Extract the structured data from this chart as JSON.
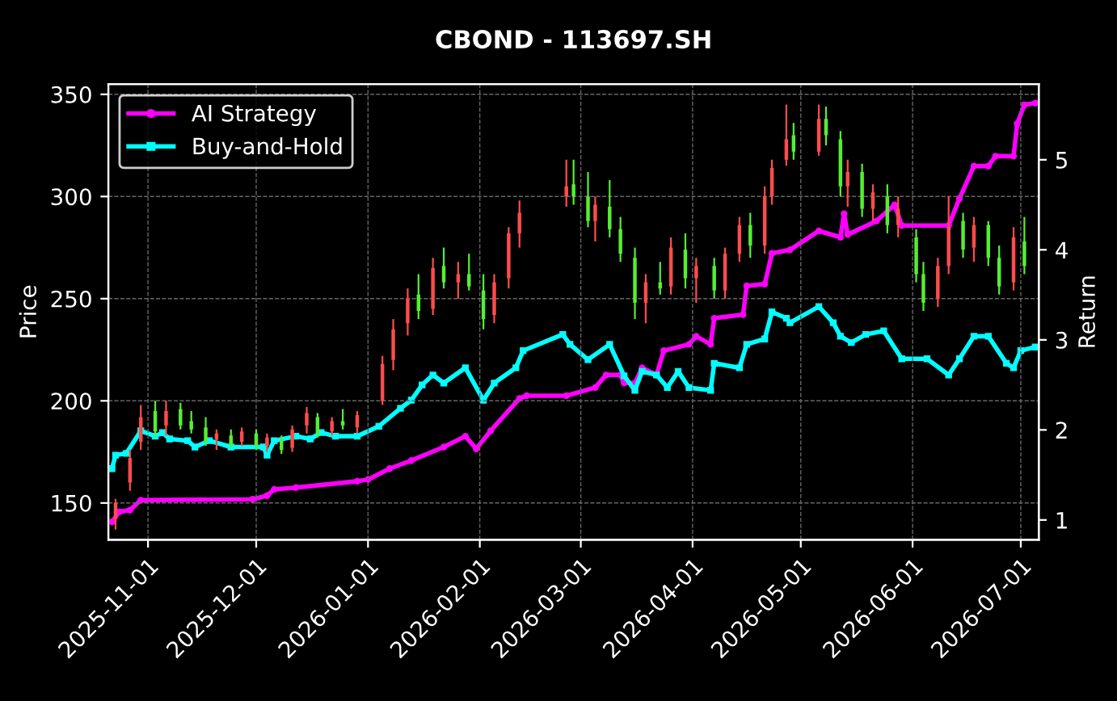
{
  "chart_data": {
    "type": "candlestick",
    "title": "CBOND - 113697.SH",
    "ylabel": "Price",
    "y2label": "Return",
    "x": [
      "2025-10-23",
      "2025-10-27",
      "2025-10-30",
      "2025-11-03",
      "2025-11-06",
      "2025-11-10",
      "2025-11-13",
      "2025-11-17",
      "2025-11-20",
      "2025-11-24",
      "2025-11-27",
      "2025-12-01",
      "2025-12-04",
      "2025-12-08",
      "2025-12-11",
      "2025-12-15",
      "2025-12-18",
      "2025-12-22",
      "2025-12-25",
      "2025-12-29",
      "2026-01-05",
      "2026-01-08",
      "2026-01-12",
      "2026-01-15",
      "2026-01-19",
      "2026-01-22",
      "2026-01-26",
      "2026-01-29",
      "2026-02-02",
      "2026-02-05",
      "2026-02-09",
      "2026-02-12",
      "2026-02-25",
      "2026-02-27",
      "2026-03-03",
      "2026-03-05",
      "2026-03-09",
      "2026-03-12",
      "2026-03-16",
      "2026-03-19",
      "2026-03-23",
      "2026-03-26",
      "2026-03-30",
      "2026-04-02",
      "2026-04-07",
      "2026-04-10",
      "2026-04-14",
      "2026-04-17",
      "2026-04-21",
      "2026-04-23",
      "2026-04-27",
      "2026-04-29",
      "2026-05-06",
      "2026-05-08",
      "2026-05-12",
      "2026-05-14",
      "2026-05-18",
      "2026-05-21",
      "2026-05-25",
      "2026-05-28",
      "2026-06-02",
      "2026-06-04",
      "2026-06-08",
      "2026-06-11",
      "2026-06-15",
      "2026-06-18",
      "2026-06-22",
      "2026-06-25",
      "2026-06-29",
      "2026-07-02"
    ],
    "ohlc": [
      [
        142,
        152,
        137,
        150
      ],
      [
        160,
        176,
        156,
        172
      ],
      [
        180,
        198,
        176,
        192
      ],
      [
        195,
        200,
        182,
        185
      ],
      [
        188,
        200,
        183,
        195
      ],
      [
        196,
        199,
        186,
        188
      ],
      [
        190,
        195,
        184,
        186
      ],
      [
        187,
        192,
        178,
        180
      ],
      [
        181,
        186,
        176,
        184
      ],
      [
        183,
        186,
        177,
        178
      ],
      [
        180,
        187,
        178,
        185
      ],
      [
        184,
        186,
        176,
        178
      ],
      [
        178,
        184,
        175,
        182
      ],
      [
        181,
        183,
        174,
        176
      ],
      [
        177,
        188,
        175,
        186
      ],
      [
        188,
        197,
        184,
        194
      ],
      [
        192,
        194,
        182,
        184
      ],
      [
        185,
        192,
        183,
        190
      ],
      [
        190,
        196,
        186,
        188
      ],
      [
        187,
        195,
        184,
        193
      ],
      [
        200,
        222,
        198,
        218
      ],
      [
        220,
        240,
        215,
        235
      ],
      [
        238,
        255,
        232,
        250
      ],
      [
        252,
        262,
        240,
        244
      ],
      [
        245,
        270,
        242,
        265
      ],
      [
        266,
        275,
        255,
        258
      ],
      [
        258,
        268,
        250,
        262
      ],
      [
        262,
        272,
        254,
        256
      ],
      [
        254,
        262,
        235,
        240
      ],
      [
        242,
        262,
        238,
        258
      ],
      [
        260,
        285,
        255,
        282
      ],
      [
        282,
        298,
        275,
        292
      ],
      [
        300,
        318,
        295,
        305
      ],
      [
        306,
        318,
        296,
        300
      ],
      [
        300,
        312,
        285,
        288
      ],
      [
        288,
        300,
        278,
        296
      ],
      [
        295,
        308,
        280,
        284
      ],
      [
        284,
        290,
        268,
        272
      ],
      [
        270,
        275,
        240,
        248
      ],
      [
        248,
        262,
        238,
        258
      ],
      [
        258,
        268,
        252,
        255
      ],
      [
        256,
        280,
        252,
        275
      ],
      [
        274,
        282,
        255,
        260
      ],
      [
        260,
        270,
        248,
        266
      ],
      [
        266,
        270,
        250,
        254
      ],
      [
        254,
        275,
        250,
        272
      ],
      [
        272,
        290,
        268,
        286
      ],
      [
        286,
        292,
        270,
        276
      ],
      [
        276,
        305,
        272,
        300
      ],
      [
        300,
        318,
        296,
        314
      ],
      [
        318,
        345,
        315,
        328
      ],
      [
        330,
        336,
        318,
        322
      ],
      [
        322,
        345,
        320,
        338
      ],
      [
        338,
        344,
        325,
        330
      ],
      [
        328,
        332,
        300,
        305
      ],
      [
        305,
        318,
        295,
        312
      ],
      [
        312,
        316,
        290,
        294
      ],
      [
        294,
        306,
        288,
        302
      ],
      [
        300,
        306,
        282,
        286
      ],
      [
        286,
        300,
        280,
        294
      ],
      [
        280,
        284,
        258,
        262
      ],
      [
        262,
        268,
        244,
        248
      ],
      [
        250,
        270,
        246,
        266
      ],
      [
        266,
        300,
        262,
        285
      ],
      [
        288,
        292,
        270,
        274
      ],
      [
        275,
        290,
        268,
        286
      ],
      [
        286,
        288,
        266,
        270
      ],
      [
        270,
        276,
        252,
        256
      ],
      [
        258,
        285,
        254,
        280
      ],
      [
        278,
        290,
        262,
        266
      ]
    ],
    "colors": [
      "#ff4c4c",
      "#ff4c4c",
      "#ff4c4c",
      "#55ee33",
      "#ff4c4c",
      "#55ee33",
      "#55ee33",
      "#55ee33",
      "#ff4c4c",
      "#55ee33",
      "#ff4c4c",
      "#55ee33",
      "#ff4c4c",
      "#55ee33",
      "#ff4c4c",
      "#ff4c4c",
      "#55ee33",
      "#ff4c4c",
      "#55ee33",
      "#ff4c4c",
      "#ff4c4c",
      "#ff4c4c",
      "#ff4c4c",
      "#55ee33",
      "#ff4c4c",
      "#55ee33",
      "#ff4c4c",
      "#55ee33",
      "#55ee33",
      "#ff4c4c",
      "#ff4c4c",
      "#ff4c4c",
      "#ff4c4c",
      "#55ee33",
      "#55ee33",
      "#ff4c4c",
      "#55ee33",
      "#55ee33",
      "#55ee33",
      "#ff4c4c",
      "#55ee33",
      "#ff4c4c",
      "#55ee33",
      "#ff4c4c",
      "#55ee33",
      "#ff4c4c",
      "#ff4c4c",
      "#55ee33",
      "#ff4c4c",
      "#ff4c4c",
      "#ff4c4c",
      "#55ee33",
      "#ff4c4c",
      "#55ee33",
      "#55ee33",
      "#ff4c4c",
      "#55ee33",
      "#ff4c4c",
      "#55ee33",
      "#ff4c4c",
      "#55ee33",
      "#55ee33",
      "#ff4c4c",
      "#ff4c4c",
      "#55ee33",
      "#ff4c4c",
      "#55ee33",
      "#55ee33",
      "#ff4c4c",
      "#55ee33"
    ],
    "series": [
      {
        "name": "AI Strategy",
        "type": "line",
        "axis": "y2",
        "color": "#ff00ff",
        "marker": "circle",
        "x": [
          "2025-10-22",
          "2025-10-24",
          "2025-10-27",
          "2025-10-30",
          "2025-11-30",
          "2025-12-04",
          "2025-12-06",
          "2025-12-12",
          "2025-12-29",
          "2026-01-01",
          "2026-01-07",
          "2026-01-13",
          "2026-01-22",
          "2026-01-28",
          "2026-01-31",
          "2026-02-04",
          "2026-02-12",
          "2026-02-14",
          "2026-02-25",
          "2026-03-05",
          "2026-03-08",
          "2026-03-12",
          "2026-03-13",
          "2026-03-16",
          "2026-03-18",
          "2026-03-22",
          "2026-03-24",
          "2026-03-31",
          "2026-04-02",
          "2026-04-06",
          "2026-04-07",
          "2026-04-15",
          "2026-04-16",
          "2026-04-21",
          "2026-04-23",
          "2026-04-28",
          "2026-05-06",
          "2026-05-12",
          "2026-05-13",
          "2026-05-14",
          "2026-05-22",
          "2026-05-27",
          "2026-05-29",
          "2026-06-11",
          "2026-06-14",
          "2026-06-18",
          "2026-06-22",
          "2026-06-24",
          "2026-06-29",
          "2026-06-30",
          "2026-07-02",
          "2026-07-05"
        ],
        "values": [
          0.98,
          1.09,
          1.11,
          1.22,
          1.23,
          1.27,
          1.34,
          1.36,
          1.43,
          1.45,
          1.57,
          1.66,
          1.81,
          1.93,
          1.79,
          1.99,
          2.35,
          2.38,
          2.38,
          2.47,
          2.61,
          2.61,
          2.52,
          2.52,
          2.69,
          2.61,
          2.88,
          2.95,
          3.04,
          2.95,
          3.24,
          3.28,
          3.6,
          3.62,
          3.96,
          4.0,
          4.21,
          4.14,
          4.4,
          4.17,
          4.32,
          4.5,
          4.27,
          4.27,
          4.57,
          4.93,
          4.93,
          5.04,
          5.04,
          5.4,
          5.61,
          5.63
        ]
      },
      {
        "name": "Buy-and-Hold",
        "type": "line",
        "axis": "y2",
        "color": "#00ffff",
        "marker": "square",
        "x": [
          "2025-10-22",
          "2025-10-23",
          "2025-10-26",
          "2025-10-30",
          "2025-11-03",
          "2025-11-05",
          "2025-11-07",
          "2025-11-12",
          "2025-11-14",
          "2025-11-18",
          "2025-11-24",
          "2025-12-03",
          "2025-12-04",
          "2025-12-06",
          "2025-12-12",
          "2025-12-16",
          "2025-12-19",
          "2025-12-23",
          "2025-12-29",
          "2026-01-04",
          "2026-01-10",
          "2026-01-13",
          "2026-01-16",
          "2026-01-19",
          "2026-01-22",
          "2026-01-28",
          "2026-02-02",
          "2026-02-05",
          "2026-02-11",
          "2026-02-13",
          "2026-02-24",
          "2026-02-26",
          "2026-03-03",
          "2026-03-09",
          "2026-03-13",
          "2026-03-16",
          "2026-03-18",
          "2026-03-22",
          "2026-03-25",
          "2026-03-28",
          "2026-03-31",
          "2026-04-06",
          "2026-04-07",
          "2026-04-14",
          "2026-04-16",
          "2026-04-21",
          "2026-04-23",
          "2026-04-27",
          "2026-04-28",
          "2026-05-06",
          "2026-05-10",
          "2026-05-12",
          "2026-05-15",
          "2026-05-19",
          "2026-05-24",
          "2026-05-29",
          "2026-06-05",
          "2026-06-11",
          "2026-06-14",
          "2026-06-18",
          "2026-06-22",
          "2026-06-27",
          "2026-06-29",
          "2026-07-01",
          "2026-07-05"
        ],
        "values": [
          1.57,
          1.72,
          1.74,
          1.99,
          1.93,
          1.97,
          1.9,
          1.88,
          1.81,
          1.88,
          1.81,
          1.81,
          1.72,
          1.88,
          1.93,
          1.9,
          1.97,
          1.93,
          1.93,
          2.04,
          2.24,
          2.33,
          2.5,
          2.61,
          2.52,
          2.69,
          2.33,
          2.52,
          2.69,
          2.88,
          3.06,
          2.95,
          2.78,
          2.95,
          2.6,
          2.44,
          2.65,
          2.61,
          2.47,
          2.65,
          2.47,
          2.44,
          2.74,
          2.69,
          2.95,
          3.01,
          3.31,
          3.24,
          3.19,
          3.37,
          3.19,
          3.04,
          2.97,
          3.06,
          3.1,
          2.79,
          2.79,
          2.61,
          2.79,
          3.04,
          3.04,
          2.74,
          2.69,
          2.88,
          2.92
        ]
      }
    ],
    "xlim": [
      "2025-10-21",
      "2026-07-06"
    ],
    "xticks": [
      "2025-11-01",
      "2025-12-01",
      "2026-01-01",
      "2026-02-01",
      "2026-03-01",
      "2026-04-01",
      "2026-05-01",
      "2026-06-01",
      "2026-07-01"
    ],
    "ylim": [
      132,
      355
    ],
    "yticks": [
      150,
      200,
      250,
      300,
      350
    ],
    "y2lim": [
      0.78,
      5.84
    ],
    "y2ticks": [
      1,
      2,
      3,
      4,
      5
    ],
    "grid": true,
    "legend": "top left"
  }
}
